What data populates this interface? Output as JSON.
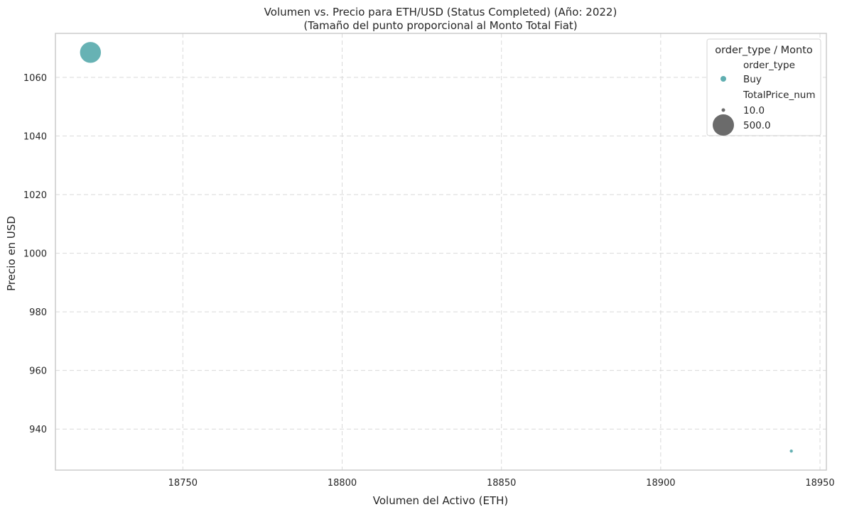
{
  "chart_data": {
    "type": "scatter",
    "title": "Volumen vs. Precio para ETH/USD (Status Completed) (Año: 2022)",
    "subtitle": "(Tamaño del punto proporcional al Monto Total Fiat)",
    "xlabel": "Volumen del Activo (ETH)",
    "ylabel": "Precio en USD",
    "xlim": [
      18710,
      18952
    ],
    "ylim": [
      926,
      1075
    ],
    "xticks": [
      18750,
      18800,
      18850,
      18900,
      18950
    ],
    "yticks": [
      940,
      960,
      980,
      1000,
      1020,
      1040,
      1060
    ],
    "grid": true,
    "legend_placement": "top-right",
    "series": [
      {
        "name": "Buy",
        "color": "#5faeb0",
        "points": [
          {
            "x": 18721,
            "y": 1068.5,
            "total": 500.0
          },
          {
            "x": 18941,
            "y": 932.5,
            "total": 10.0
          }
        ]
      }
    ],
    "legend": {
      "title": "order_type / Monto",
      "hue_title": "order_type",
      "hue_entries": [
        {
          "label": "Buy",
          "color": "#5faeb0"
        }
      ],
      "size_title": "TotalPrice_num",
      "size_entries": [
        {
          "label": "10.0",
          "value": 10.0
        },
        {
          "label": "500.0",
          "value": 500.0
        }
      ],
      "size_color": "#6b6b6b"
    },
    "colors": {
      "grid": "#d9d9d9",
      "spine": "#cccccc",
      "legend_border": "#d6d6d6"
    }
  }
}
